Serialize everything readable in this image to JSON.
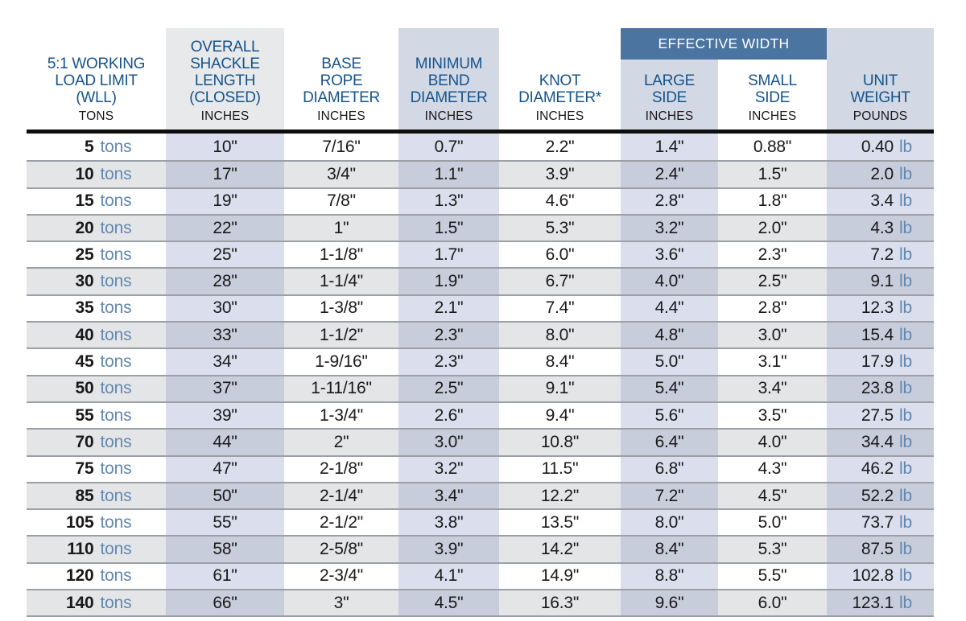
{
  "banner": {
    "label": "EFFECTIVE WIDTH"
  },
  "units": {
    "tons": "tons",
    "lb": "lb"
  },
  "colors": {
    "header_text_blue": "#15538b",
    "banner_blue": "#4b74a1",
    "banner_text": "#ffffff",
    "header_tint": "#d3d8e5",
    "header_gray": "#e8e9eb",
    "column_tint_light": "#dadeed",
    "column_tint_dark": "#c8cddc",
    "row_stripe_gray": "#e4e5e7",
    "accent_steel_blue": "#6288b0",
    "row_separator": "#9aa0a5",
    "header_rule_black": "#0e0e0e"
  },
  "chart_data": {
    "type": "table",
    "group_header": {
      "label": "EFFECTIVE WIDTH",
      "spans": [
        "large_side",
        "small_side"
      ]
    },
    "columns": [
      {
        "key": "wll",
        "title": "5:1 WORKING\nLOAD LIMIT\n(WLL)",
        "unit": "TONS"
      },
      {
        "key": "shackle_length",
        "title": "OVERALL\nSHACKLE\nLENGTH\n(CLOSED)",
        "unit": "INCHES"
      },
      {
        "key": "base_rope",
        "title": "BASE\nROPE\nDIAMETER",
        "unit": "INCHES"
      },
      {
        "key": "min_bend",
        "title": "MINIMUM\nBEND\nDIAMETER",
        "unit": "INCHES"
      },
      {
        "key": "knot",
        "title": "KNOT\nDIAMETER*",
        "unit": "INCHES"
      },
      {
        "key": "large_side",
        "title": "LARGE\nSIDE",
        "unit": "INCHES",
        "group": "EFFECTIVE WIDTH"
      },
      {
        "key": "small_side",
        "title": "SMALL\nSIDE",
        "unit": "INCHES",
        "group": "EFFECTIVE WIDTH"
      },
      {
        "key": "unit_weight",
        "title": "UNIT\nWEIGHT",
        "unit": "POUNDS"
      }
    ],
    "rows": [
      {
        "wll": "5",
        "shackle_length": "10\"",
        "base_rope": "7/16\"",
        "min_bend": "0.7\"",
        "knot": "2.2\"",
        "large_side": "1.4\"",
        "small_side": "0.88\"",
        "unit_weight": "0.40"
      },
      {
        "wll": "10",
        "shackle_length": "17\"",
        "base_rope": "3/4\"",
        "min_bend": "1.1\"",
        "knot": "3.9\"",
        "large_side": "2.4\"",
        "small_side": "1.5\"",
        "unit_weight": "2.0"
      },
      {
        "wll": "15",
        "shackle_length": "19\"",
        "base_rope": "7/8\"",
        "min_bend": "1.3\"",
        "knot": "4.6\"",
        "large_side": "2.8\"",
        "small_side": "1.8\"",
        "unit_weight": "3.4"
      },
      {
        "wll": "20",
        "shackle_length": "22\"",
        "base_rope": "1\"",
        "min_bend": "1.5\"",
        "knot": "5.3\"",
        "large_side": "3.2\"",
        "small_side": "2.0\"",
        "unit_weight": "4.3"
      },
      {
        "wll": "25",
        "shackle_length": "25\"",
        "base_rope": "1-1/8\"",
        "min_bend": "1.7\"",
        "knot": "6.0\"",
        "large_side": "3.6\"",
        "small_side": "2.3\"",
        "unit_weight": "7.2"
      },
      {
        "wll": "30",
        "shackle_length": "28\"",
        "base_rope": "1-1/4\"",
        "min_bend": "1.9\"",
        "knot": "6.7\"",
        "large_side": "4.0\"",
        "small_side": "2.5\"",
        "unit_weight": "9.1"
      },
      {
        "wll": "35",
        "shackle_length": "30\"",
        "base_rope": "1-3/8\"",
        "min_bend": "2.1\"",
        "knot": "7.4\"",
        "large_side": "4.4\"",
        "small_side": "2.8\"",
        "unit_weight": "12.3"
      },
      {
        "wll": "40",
        "shackle_length": "33\"",
        "base_rope": "1-1/2\"",
        "min_bend": "2.3\"",
        "knot": "8.0\"",
        "large_side": "4.8\"",
        "small_side": "3.0\"",
        "unit_weight": "15.4"
      },
      {
        "wll": "45",
        "shackle_length": "34\"",
        "base_rope": "1-9/16\"",
        "min_bend": "2.3\"",
        "knot": "8.4\"",
        "large_side": "5.0\"",
        "small_side": "3.1\"",
        "unit_weight": "17.9"
      },
      {
        "wll": "50",
        "shackle_length": "37\"",
        "base_rope": "1-11/16\"",
        "min_bend": "2.5\"",
        "knot": "9.1\"",
        "large_side": "5.4\"",
        "small_side": "3.4\"",
        "unit_weight": "23.8"
      },
      {
        "wll": "55",
        "shackle_length": "39\"",
        "base_rope": "1-3/4\"",
        "min_bend": "2.6\"",
        "knot": "9.4\"",
        "large_side": "5.6\"",
        "small_side": "3.5\"",
        "unit_weight": "27.5"
      },
      {
        "wll": "70",
        "shackle_length": "44\"",
        "base_rope": "2\"",
        "min_bend": "3.0\"",
        "knot": "10.8\"",
        "large_side": "6.4\"",
        "small_side": "4.0\"",
        "unit_weight": "34.4"
      },
      {
        "wll": "75",
        "shackle_length": "47\"",
        "base_rope": "2-1/8\"",
        "min_bend": "3.2\"",
        "knot": "11.5\"",
        "large_side": "6.8\"",
        "small_side": "4.3\"",
        "unit_weight": "46.2"
      },
      {
        "wll": "85",
        "shackle_length": "50\"",
        "base_rope": "2-1/4\"",
        "min_bend": "3.4\"",
        "knot": "12.2\"",
        "large_side": "7.2\"",
        "small_side": "4.5\"",
        "unit_weight": "52.2"
      },
      {
        "wll": "105",
        "shackle_length": "55\"",
        "base_rope": "2-1/2\"",
        "min_bend": "3.8\"",
        "knot": "13.5\"",
        "large_side": "8.0\"",
        "small_side": "5.0\"",
        "unit_weight": "73.7"
      },
      {
        "wll": "110",
        "shackle_length": "58\"",
        "base_rope": "2-5/8\"",
        "min_bend": "3.9\"",
        "knot": "14.2\"",
        "large_side": "8.4\"",
        "small_side": "5.3\"",
        "unit_weight": "87.5"
      },
      {
        "wll": "120",
        "shackle_length": "61\"",
        "base_rope": "2-3/4\"",
        "min_bend": "4.1\"",
        "knot": "14.9\"",
        "large_side": "8.8\"",
        "small_side": "5.5\"",
        "unit_weight": "102.8"
      },
      {
        "wll": "140",
        "shackle_length": "66\"",
        "base_rope": "3\"",
        "min_bend": "4.5\"",
        "knot": "16.3\"",
        "large_side": "9.6\"",
        "small_side": "6.0\"",
        "unit_weight": "123.1"
      }
    ]
  }
}
